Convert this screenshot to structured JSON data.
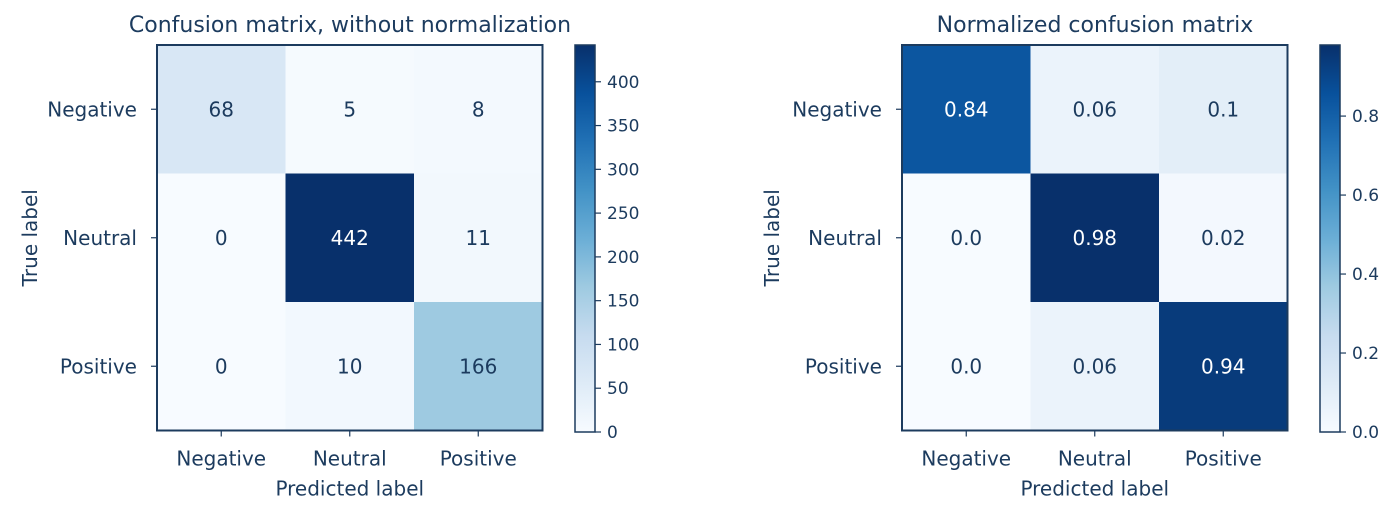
{
  "chart_data": [
    {
      "type": "heatmap",
      "title": "Confusion matrix, without normalization",
      "xlabel": "Predicted label",
      "ylabel": "True label",
      "x_categories": [
        "Negative",
        "Neutral",
        "Positive"
      ],
      "y_categories": [
        "Negative",
        "Neutral",
        "Positive"
      ],
      "values": [
        [
          68,
          5,
          8
        ],
        [
          0,
          442,
          11
        ],
        [
          0,
          10,
          166
        ]
      ],
      "cell_labels": [
        [
          "68",
          "5",
          "8"
        ],
        [
          "0",
          "442",
          "11"
        ],
        [
          "0",
          "10",
          "166"
        ]
      ],
      "colormap": "Blues",
      "color_range": [
        0,
        442
      ],
      "colorbar_ticks": [
        0,
        50,
        100,
        150,
        200,
        250,
        300,
        350,
        400
      ],
      "colorbar_tick_labels": [
        "0",
        "50",
        "100",
        "150",
        "200",
        "250",
        "300",
        "350",
        "400"
      ]
    },
    {
      "type": "heatmap",
      "title": "Normalized confusion matrix",
      "xlabel": "Predicted label",
      "ylabel": "True label",
      "x_categories": [
        "Negative",
        "Neutral",
        "Positive"
      ],
      "y_categories": [
        "Negative",
        "Neutral",
        "Positive"
      ],
      "values": [
        [
          0.84,
          0.06,
          0.1
        ],
        [
          0.0,
          0.98,
          0.02
        ],
        [
          0.0,
          0.06,
          0.94
        ]
      ],
      "cell_labels": [
        [
          "0.84",
          "0.06",
          "0.1"
        ],
        [
          "0.0",
          "0.98",
          "0.02"
        ],
        [
          "0.0",
          "0.06",
          "0.94"
        ]
      ],
      "colormap": "Blues",
      "color_range": [
        0,
        0.98
      ],
      "colorbar_ticks": [
        0.0,
        0.2,
        0.4,
        0.6,
        0.8
      ],
      "colorbar_tick_labels": [
        "0.0",
        "0.2",
        "0.4",
        "0.6",
        "0.8"
      ]
    }
  ],
  "colors": {
    "frame": "#1c3b5e",
    "text_dark": "#1c3b5e",
    "text_light": "#ffffff",
    "cmap_stops": [
      "#f7fbff",
      "#deebf7",
      "#c6dbef",
      "#9ecae1",
      "#6baed6",
      "#4292c6",
      "#2171b5",
      "#08519c",
      "#08306b"
    ]
  }
}
